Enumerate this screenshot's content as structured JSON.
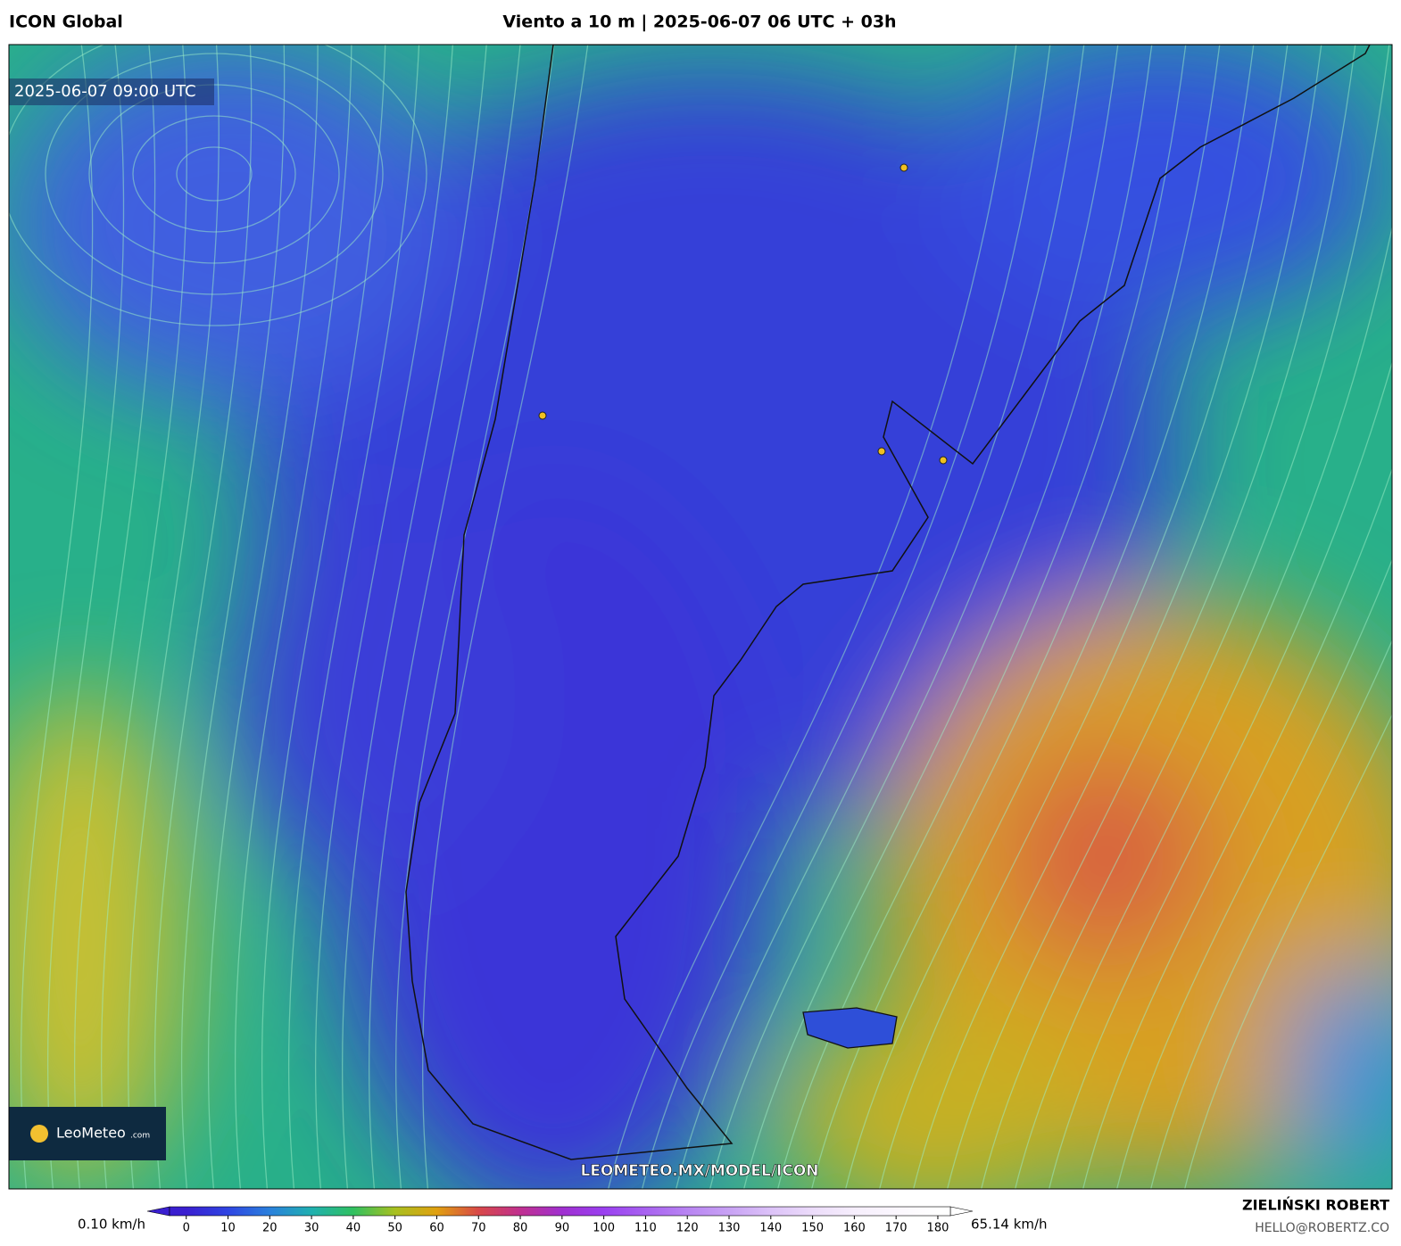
{
  "header": {
    "left": "ICON Global",
    "title": "Viento a 10 m | 2025-06-07 06 UTC + 03h"
  },
  "map": {
    "timestamp": "2025-06-07 09:00 UTC",
    "logo": "LeoMeteo",
    "logo_suffix": ".com",
    "url": "LEOMETEO.MX/MODEL/ICON"
  },
  "colorbar": {
    "min_label": "0.10 km/h",
    "max_label": "65.14 km/h",
    "lim": [
      -4,
      183
    ],
    "ticks": [
      0,
      10,
      20,
      30,
      40,
      50,
      60,
      70,
      80,
      90,
      100,
      110,
      120,
      130,
      140,
      150,
      160,
      170,
      180
    ],
    "stops": [
      {
        "value": 0,
        "color": "#3a1fd0"
      },
      {
        "value": 10,
        "color": "#2f45e2"
      },
      {
        "value": 20,
        "color": "#2a80dc"
      },
      {
        "value": 30,
        "color": "#20b0b0"
      },
      {
        "value": 40,
        "color": "#30c060"
      },
      {
        "value": 50,
        "color": "#a8c020"
      },
      {
        "value": 60,
        "color": "#e0a010"
      },
      {
        "value": 70,
        "color": "#d84848"
      },
      {
        "value": 80,
        "color": "#c03090"
      },
      {
        "value": 90,
        "color": "#a030d0"
      },
      {
        "value": 100,
        "color": "#9a40f0"
      },
      {
        "value": 110,
        "color": "#a862f0"
      },
      {
        "value": 120,
        "color": "#b884f2"
      },
      {
        "value": 130,
        "color": "#c8a2f4"
      },
      {
        "value": 140,
        "color": "#dcc2f8"
      },
      {
        "value": 150,
        "color": "#ecdcfa"
      },
      {
        "value": 160,
        "color": "#f6eefc"
      },
      {
        "value": 170,
        "color": "#fbf7fe"
      },
      {
        "value": 180,
        "color": "#ffffff"
      }
    ]
  },
  "footer": {
    "author": "ZIELIŃSKI ROBERT",
    "email": "HELLO@ROBERTZ.CO"
  }
}
